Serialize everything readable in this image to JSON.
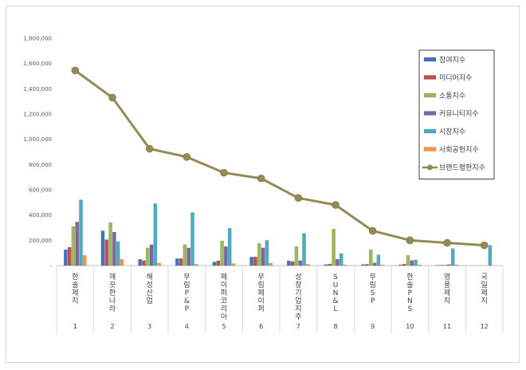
{
  "chart_data": {
    "type": "bar",
    "ylim": [
      0,
      1800000
    ],
    "yticks": [
      "-",
      "200,000",
      "400,000",
      "600,000",
      "800,000",
      "1,000,000",
      "1,200,000",
      "1,400,000",
      "1,600,000",
      "1,800,000"
    ],
    "categories": [
      "한솔제지",
      "깨끗한나라",
      "해성산업",
      "무림P&P",
      "페이퍼코리아",
      "무림페이퍼",
      "성창기업지주",
      "SUN&L",
      "무림SP",
      "한솔PNS",
      "영풍제지",
      "국일제지"
    ],
    "numbers": [
      "1",
      "2",
      "3",
      "4",
      "5",
      "6",
      "7",
      "8",
      "9",
      "10",
      "11",
      "12"
    ],
    "series": [
      {
        "name": "참여지수",
        "color": "#4472c4",
        "values": [
          125000,
          275000,
          50000,
          55000,
          28000,
          68000,
          38000,
          8000,
          8000,
          5000,
          2000,
          0
        ]
      },
      {
        "name": "미디어지수",
        "color": "#c0504d",
        "values": [
          145000,
          205000,
          40000,
          55000,
          38000,
          68000,
          32000,
          12000,
          10000,
          12000,
          3000,
          0
        ]
      },
      {
        "name": "소통지수",
        "color": "#9bbb59",
        "values": [
          310000,
          340000,
          140000,
          165000,
          195000,
          175000,
          150000,
          290000,
          125000,
          80000,
          5000,
          0
        ]
      },
      {
        "name": "커뮤니티지수",
        "color": "#8064a2",
        "values": [
          345000,
          265000,
          165000,
          140000,
          150000,
          140000,
          40000,
          50000,
          20000,
          40000,
          8000,
          0
        ]
      },
      {
        "name": "시장지수",
        "color": "#4bacc6",
        "values": [
          520000,
          190000,
          490000,
          420000,
          295000,
          200000,
          255000,
          95000,
          85000,
          45000,
          135000,
          160000
        ]
      },
      {
        "name": "사회공헌지수",
        "color": "#f79646",
        "values": [
          80000,
          50000,
          20000,
          10000,
          15000,
          20000,
          10000,
          5000,
          5000,
          5000,
          5000,
          0
        ]
      }
    ],
    "line": {
      "name": "브랜드평판지수",
      "color": "#948a54",
      "values": [
        1545000,
        1330000,
        925000,
        860000,
        735000,
        690000,
        535000,
        480000,
        275000,
        200000,
        180000,
        160000
      ]
    },
    "legend_position": "right"
  }
}
